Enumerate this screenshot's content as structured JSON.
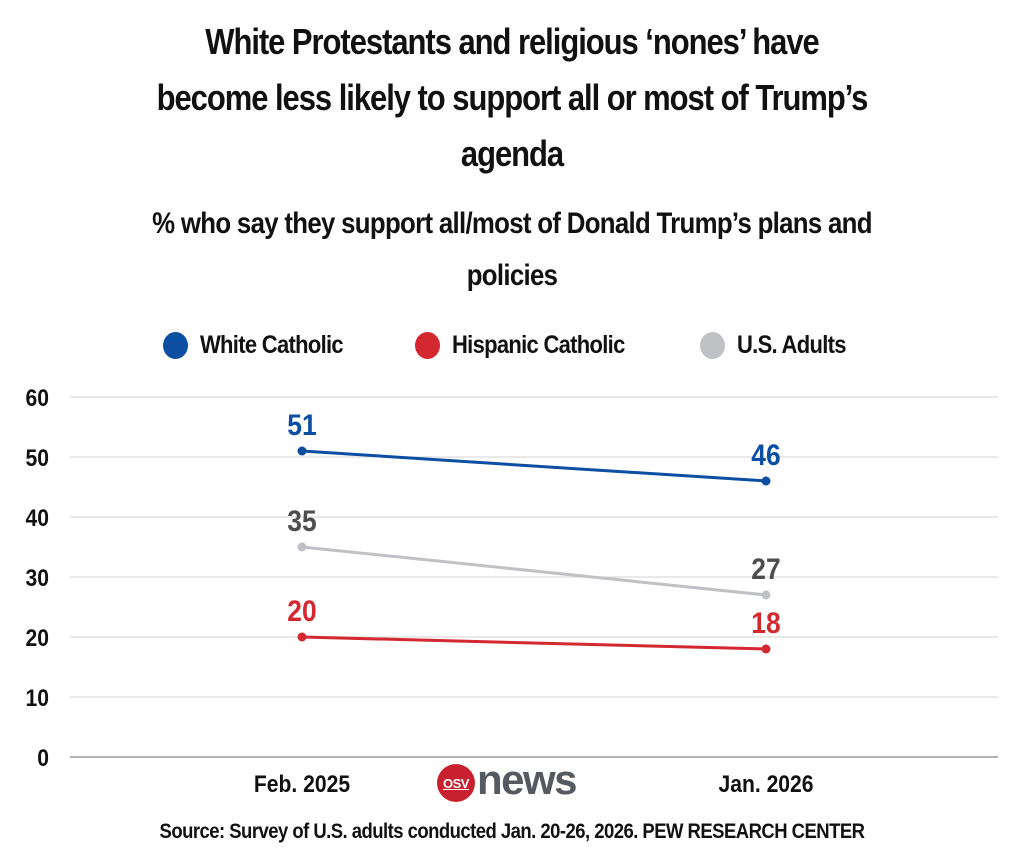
{
  "header": {
    "title": "White Protestants and religious ‘nones’ have\nbecome less likely to support all or most of Trump’s\nagenda",
    "subtitle": "% who say they support all/most of Donald Trump’s plans and\npolicies"
  },
  "legend": [
    {
      "label": "White Catholic",
      "color": "#0b4ea2"
    },
    {
      "label": "Hispanic Catholic",
      "color": "#d3282f"
    },
    {
      "label": "U.S. Adults",
      "color": "#c0c1c4"
    }
  ],
  "footer": {
    "source": "Source: Survey of U.S. adults conducted Jan. 20-26, 2026. PEW RESEARCH CENTER",
    "logo_badge": "OSV",
    "logo_word": "news"
  },
  "chart_data": {
    "type": "line",
    "title": "White Protestants and religious ‘nones’ have become less likely to support all or most of Trump’s agenda",
    "subtitle": "% who say they support all/most of Donald Trump’s plans and policies",
    "xlabel": "",
    "ylabel": "",
    "categories": [
      "Feb. 2025",
      "Jan. 2026"
    ],
    "ylim": [
      0,
      60
    ],
    "yticks": [
      0,
      10,
      20,
      30,
      40,
      50,
      60
    ],
    "grid": true,
    "legend_position": "top-center",
    "series": [
      {
        "name": "White Catholic",
        "values": [
          51,
          46
        ],
        "color": "#0b4ea2",
        "label_color": "#0b4ea2"
      },
      {
        "name": "U.S. Adults",
        "values": [
          35,
          27
        ],
        "color": "#c0c1c4",
        "label_color": "#4d4d4d"
      },
      {
        "name": "Hispanic Catholic",
        "values": [
          20,
          18
        ],
        "color": "#d3282f",
        "label_color": "#d3282f"
      }
    ]
  }
}
